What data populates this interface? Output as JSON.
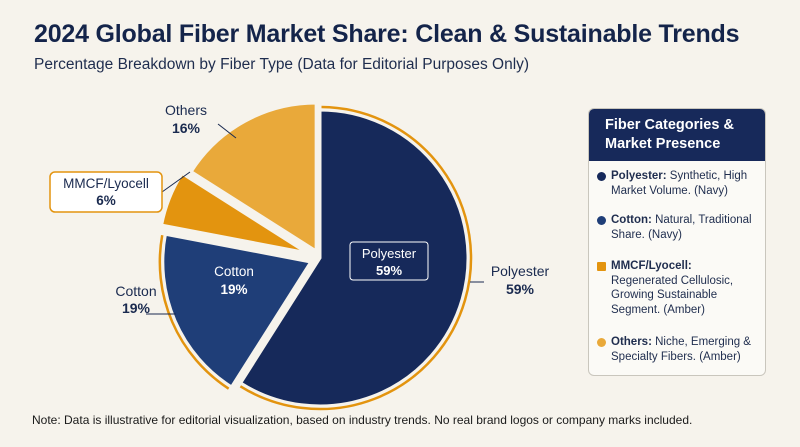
{
  "title": "2024 Global Fiber Market Share: Clean & Sustainable Trends",
  "subtitle": "Percentage Breakdown by Fiber Type (Data for Editorial Purposes Only)",
  "chart_data": {
    "type": "pie",
    "title": "2024 Global Fiber Market Share: Clean & Sustainable Trends",
    "subtitle": "Percentage Breakdown by Fiber Type (Data for Editorial Purposes Only)",
    "categories": [
      "Polyester",
      "Cotton",
      "MMCF/Lyocell",
      "Others"
    ],
    "values": [
      59,
      19,
      6,
      16
    ],
    "value_labels": [
      "59%",
      "19%",
      "6%",
      "16%"
    ],
    "colors": [
      "#16295a",
      "#1f3e78",
      "#e3940f",
      "#e9a93a"
    ],
    "exploded": [
      "Cotton",
      "MMCF/Lyocell",
      "Others"
    ],
    "legend_placement": "right"
  },
  "legend": {
    "title": "Fiber Categories & Market Presence",
    "items": [
      {
        "name": "Polyester:",
        "desc": " Synthetic, High Market Volume. (Navy)",
        "color": "#16295a",
        "shape": "circle"
      },
      {
        "name": "Cotton:",
        "desc": " Natural, Traditional Share. (Navy)",
        "color": "#1f3e78",
        "shape": "circle"
      },
      {
        "name": "MMCF/Lyocell:",
        "desc": " Regenerated Cellulosic, Growing Sustainable Segment. (Amber)",
        "color": "#e3940f",
        "shape": "square"
      },
      {
        "name": "Others:",
        "desc": " Niche, Emerging & Specialty Fibers. (Amber)",
        "color": "#e9a93a",
        "shape": "circle"
      }
    ]
  },
  "note": "Note: Data is illustrative for editorial visualization, based on industry trends. No real brand logos or company marks included."
}
